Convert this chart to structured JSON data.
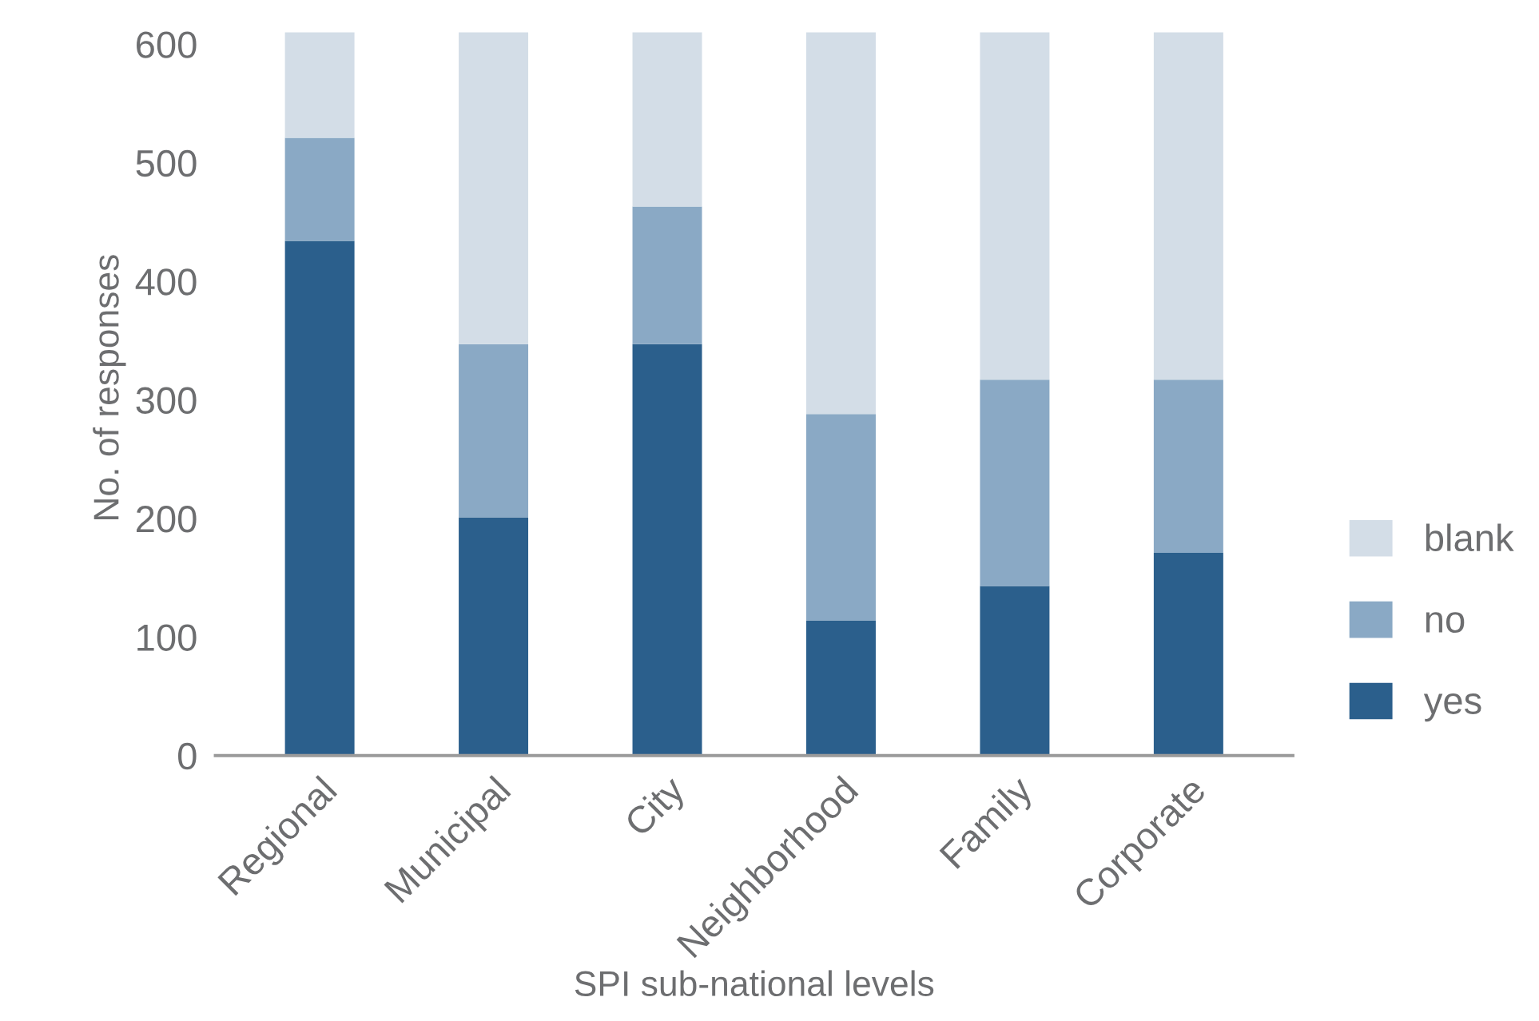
{
  "chart_data": {
    "type": "bar",
    "stacked": true,
    "xlabel": "SPI sub-national levels",
    "ylabel": "No. of responses",
    "categories": [
      "Regional",
      "Municipal",
      "City",
      "Neighborhood",
      "Family",
      "Corporate"
    ],
    "series": [
      {
        "name": "yes",
        "color": "#2b5f8c",
        "values": [
          434,
          201,
          347,
          114,
          143,
          171
        ]
      },
      {
        "name": "no",
        "color": "#8aa9c5",
        "values": [
          87,
          146,
          116,
          174,
          174,
          146
        ]
      },
      {
        "name": "blank",
        "color": "#d3dde7",
        "values": [
          89,
          263,
          147,
          322,
          293,
          293
        ]
      }
    ],
    "ylim": [
      0,
      620
    ],
    "yticks": [
      0,
      100,
      200,
      300,
      400,
      500,
      600
    ],
    "grid": false,
    "legend": "bottom right"
  }
}
